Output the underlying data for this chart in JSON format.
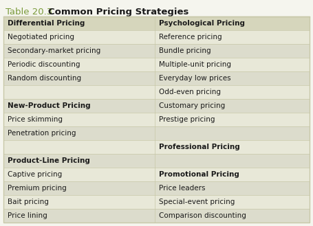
{
  "title_prefix": "Table 20.3",
  "title_main": "Common Pricing Strategies",
  "title_color": "#7a9a3a",
  "title_fontsize": 9.5,
  "item_fontsize": 7.5,
  "outer_bg": "#f5f5ee",
  "table_border_color": "#c8c8a8",
  "rows": [
    {
      "left": "Differential Pricing",
      "right": "Psychological Pricing",
      "left_bold": true,
      "right_bold": true,
      "bg": "#d6d6bc"
    },
    {
      "left": "Negotiated pricing",
      "right": "Reference pricing",
      "left_bold": false,
      "right_bold": false,
      "bg": "#e8e8d8"
    },
    {
      "left": "Secondary-market pricing",
      "right": "Bundle pricing",
      "left_bold": false,
      "right_bold": false,
      "bg": "#dcdccc"
    },
    {
      "left": "Periodic discounting",
      "right": "Multiple-unit pricing",
      "left_bold": false,
      "right_bold": false,
      "bg": "#e8e8d8"
    },
    {
      "left": "Random discounting",
      "right": "Everyday low prices",
      "left_bold": false,
      "right_bold": false,
      "bg": "#dcdccc"
    },
    {
      "left": "",
      "right": "Odd-even pricing",
      "left_bold": false,
      "right_bold": false,
      "bg": "#e8e8d8"
    },
    {
      "left": "New-Product Pricing",
      "right": "Customary pricing",
      "left_bold": true,
      "right_bold": false,
      "bg": "#dcdccc"
    },
    {
      "left": "Price skimming",
      "right": "Prestige pricing",
      "left_bold": false,
      "right_bold": false,
      "bg": "#e8e8d8"
    },
    {
      "left": "Penetration pricing",
      "right": "",
      "left_bold": false,
      "right_bold": false,
      "bg": "#dcdccc"
    },
    {
      "left": "",
      "right": "Professional Pricing",
      "left_bold": false,
      "right_bold": true,
      "bg": "#e8e8d8"
    },
    {
      "left": "Product-Line Pricing",
      "right": "",
      "left_bold": true,
      "right_bold": false,
      "bg": "#dcdccc"
    },
    {
      "left": "Captive pricing",
      "right": "Promotional Pricing",
      "left_bold": false,
      "right_bold": true,
      "bg": "#e8e8d8"
    },
    {
      "left": "Premium pricing",
      "right": "Price leaders",
      "left_bold": false,
      "right_bold": false,
      "bg": "#dcdccc"
    },
    {
      "left": "Bait pricing",
      "right": "Special-event pricing",
      "left_bold": false,
      "right_bold": false,
      "bg": "#e8e8d8"
    },
    {
      "left": "Price lining",
      "right": "Comparison discounting",
      "left_bold": false,
      "right_bold": false,
      "bg": "#dcdccc"
    }
  ]
}
